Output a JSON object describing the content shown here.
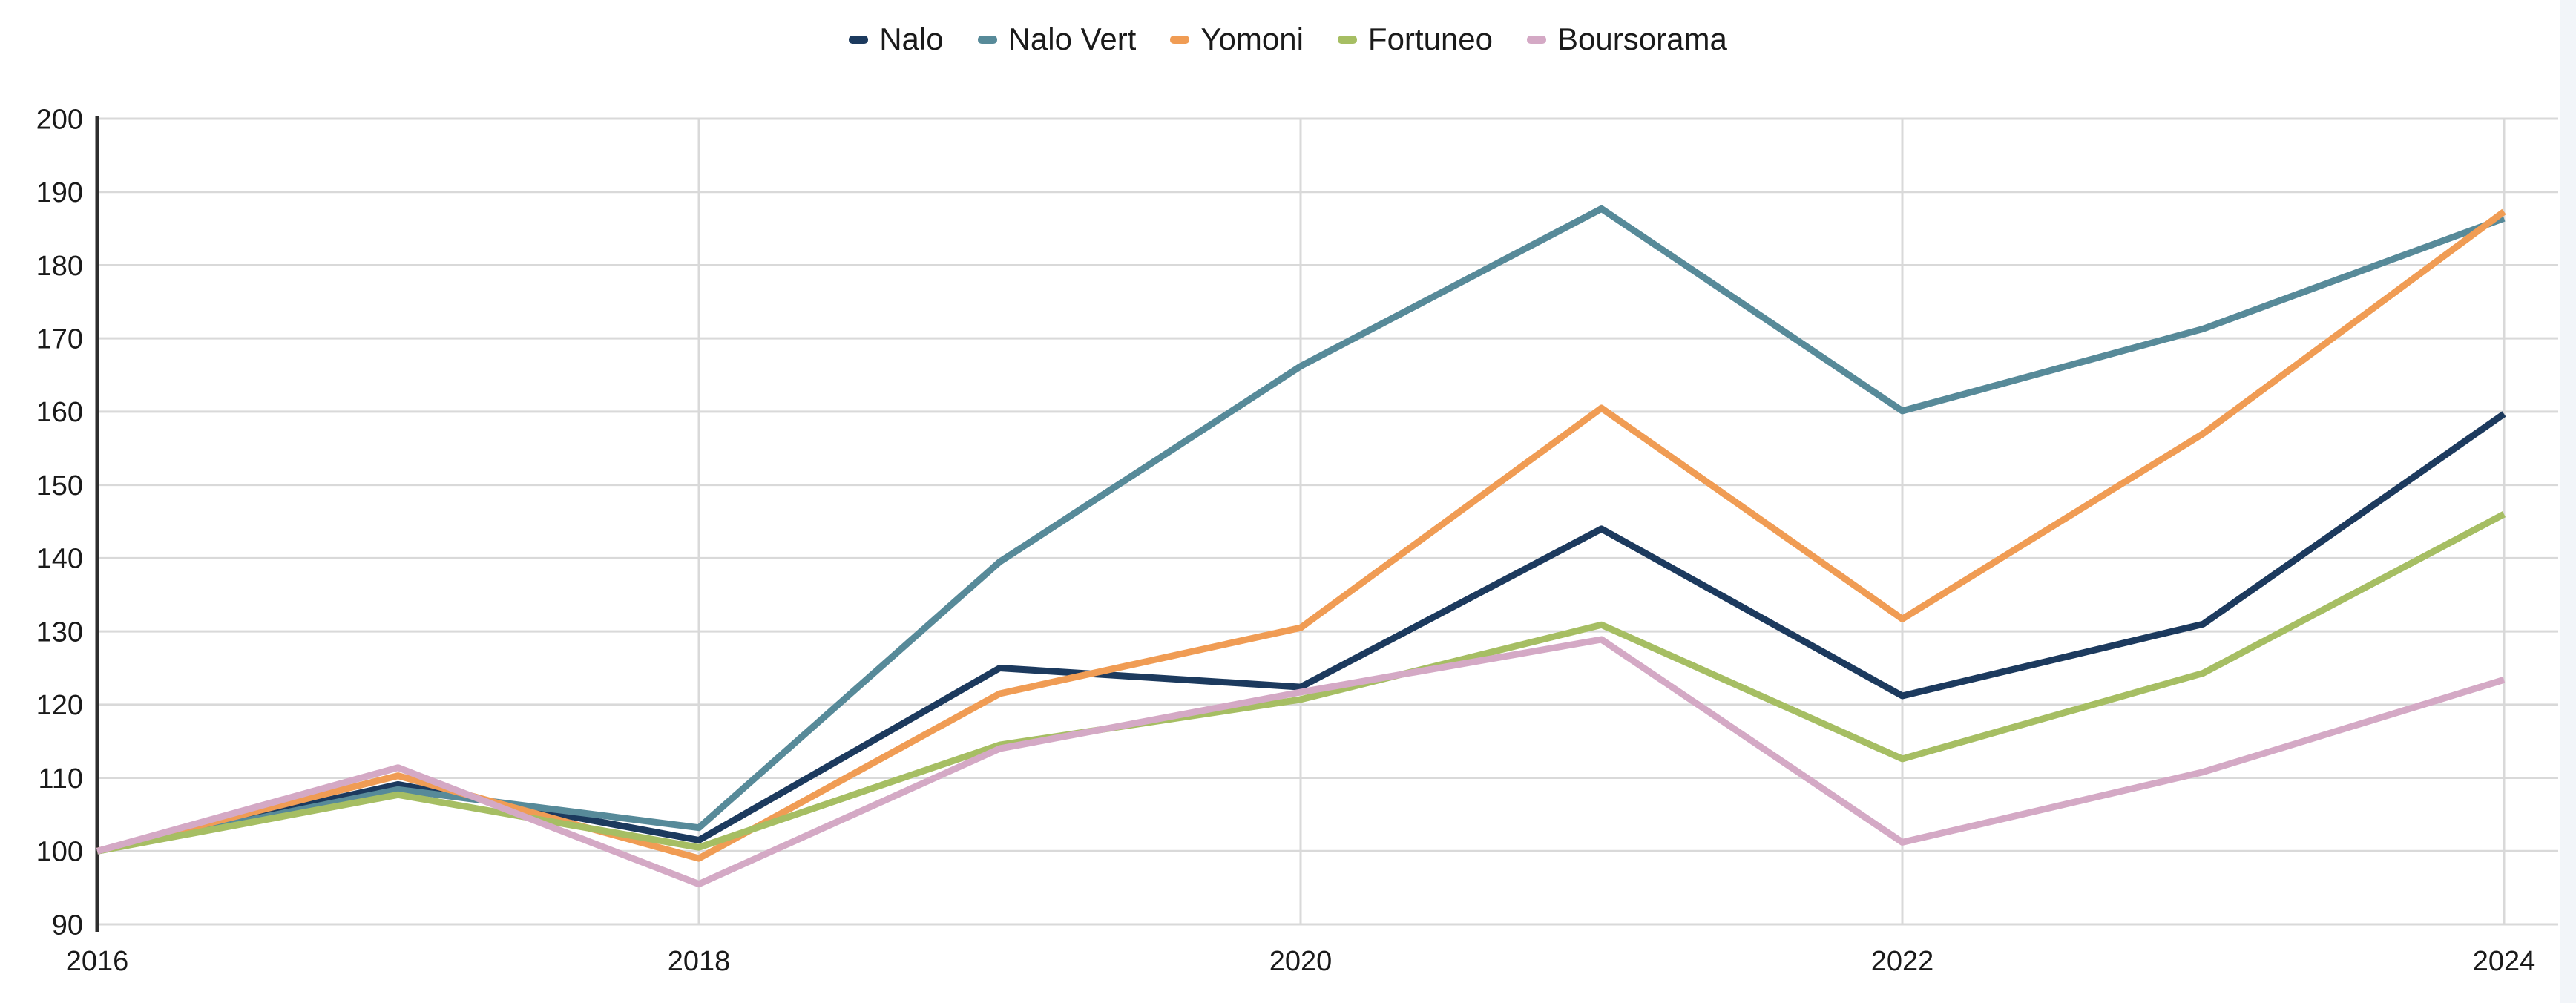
{
  "page": {
    "background": "#ffffff",
    "right_strip_color": "#f2f5f9"
  },
  "legend": {
    "position": "top-center"
  },
  "chart_data": {
    "type": "line",
    "x": [
      2016,
      2017,
      2018,
      2019,
      2020,
      2021,
      2022,
      2023,
      2024
    ],
    "x_tick_labels": [
      "2016",
      "2018",
      "2020",
      "2022",
      "2024"
    ],
    "x_tick_values": [
      2016,
      2018,
      2020,
      2022,
      2024
    ],
    "y_ticks": [
      90,
      100,
      110,
      120,
      130,
      140,
      150,
      160,
      170,
      180,
      190,
      200
    ],
    "ylim": [
      90,
      200
    ],
    "xlabel": "",
    "ylabel": "",
    "title": "",
    "grid": true,
    "legend_position": "top",
    "series": [
      {
        "name": "Nalo",
        "color": "#1C3A5E",
        "values": [
          100,
          109.1,
          101.5,
          125.0,
          122.4,
          144.0,
          121.2,
          131.0,
          159.7
        ]
      },
      {
        "name": "Nalo Vert",
        "color": "#578A99",
        "values": [
          100,
          108.4,
          103.2,
          139.5,
          166.2,
          187.7,
          160.1,
          171.3,
          186.4
        ]
      },
      {
        "name": "Yomoni",
        "color": "#F09C54",
        "values": [
          100,
          110.3,
          99.0,
          121.5,
          130.5,
          160.5,
          131.7,
          157.0,
          187.3
        ]
      },
      {
        "name": "Fortuneo",
        "color": "#A6BE63",
        "values": [
          100,
          107.7,
          100.5,
          114.5,
          120.7,
          130.9,
          112.6,
          124.3,
          146.0
        ]
      },
      {
        "name": "Boursorama",
        "color": "#D4A9C5",
        "values": [
          100,
          111.4,
          95.5,
          114.0,
          121.7,
          128.9,
          101.2,
          110.8,
          123.4
        ]
      }
    ],
    "style": {
      "gridline_color": "#D9D9D9",
      "axis_color": "#2E2E2E",
      "tick_text_color": "#1a1a1a",
      "line_width": 9
    }
  }
}
